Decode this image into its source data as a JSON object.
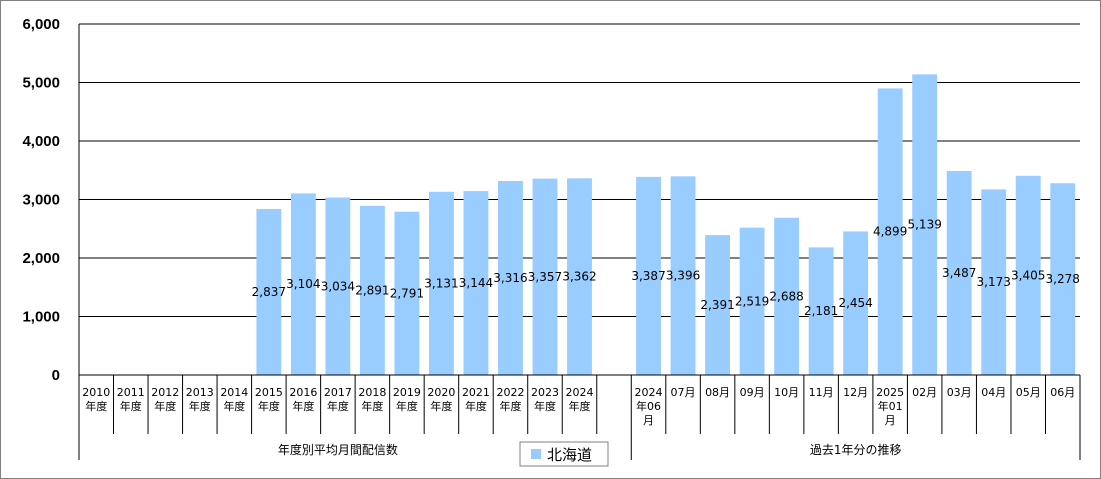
{
  "chart_data": {
    "type": "bar",
    "ylim": [
      0,
      6000
    ],
    "yticks": [
      "0",
      "1,000",
      "2,000",
      "3,000",
      "4,000",
      "5,000",
      "6,000"
    ],
    "grid": true,
    "legend_position": "bottom-center",
    "series": [
      {
        "name": "北海道",
        "color": "#99ccff",
        "values": [
          null,
          null,
          null,
          null,
          null,
          2837,
          3104,
          3034,
          2891,
          2791,
          3131,
          3144,
          3316,
          3357,
          3362,
          null,
          3387,
          3396,
          2391,
          2519,
          2688,
          2181,
          2454,
          4899,
          5139,
          3487,
          3173,
          3405,
          3278
        ],
        "labels": [
          "",
          "",
          "",
          "",
          "",
          "2,837",
          "3,104",
          "3,034",
          "2,891",
          "2,791",
          "3,131",
          "3,144",
          "3,316",
          "3,357",
          "3,362",
          "",
          "3,387",
          "3,396",
          "2,391",
          "2,519",
          "2,688",
          "2,181",
          "2,454",
          "4,899",
          "5,139",
          "3,487",
          "3,173",
          "3,405",
          "3,278"
        ]
      }
    ],
    "categories": [
      [
        "2010",
        "年度"
      ],
      [
        "2011",
        "年度"
      ],
      [
        "2012",
        "年度"
      ],
      [
        "2013",
        "年度"
      ],
      [
        "2014",
        "年度"
      ],
      [
        "2015",
        "年度"
      ],
      [
        "2016",
        "年度"
      ],
      [
        "2017",
        "年度"
      ],
      [
        "2018",
        "年度"
      ],
      [
        "2019",
        "年度"
      ],
      [
        "2020",
        "年度"
      ],
      [
        "2021",
        "年度"
      ],
      [
        "2022",
        "年度"
      ],
      [
        "2023",
        "年度"
      ],
      [
        "2024",
        "年度"
      ],
      [
        ""
      ],
      [
        "2024",
        "年06",
        "月"
      ],
      [
        "07月"
      ],
      [
        "08月"
      ],
      [
        "09月"
      ],
      [
        "10月"
      ],
      [
        "11月"
      ],
      [
        "12月"
      ],
      [
        "2025",
        "年01",
        "月"
      ],
      [
        "02月"
      ],
      [
        "03月"
      ],
      [
        "04月"
      ],
      [
        "05月"
      ],
      [
        "06月"
      ]
    ],
    "groups": [
      {
        "label": "年度別平均月間配信数"
      },
      {
        "label": "過去1年分の推移"
      }
    ]
  }
}
